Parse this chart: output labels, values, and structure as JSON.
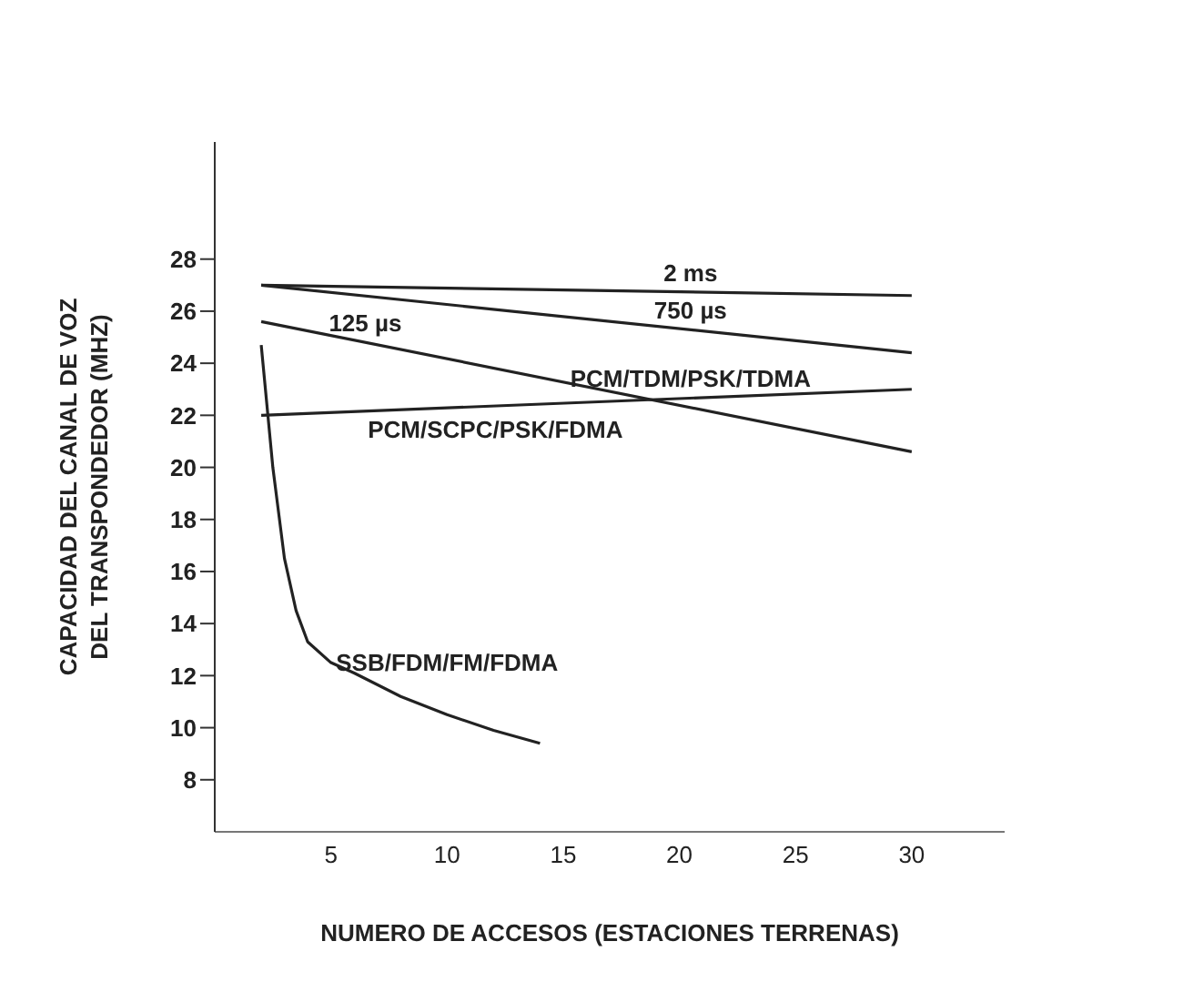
{
  "chart_data": {
    "type": "line",
    "xlabel": "NUMERO DE ACCESOS  (ESTACIONES TERRENAS)",
    "ylabel": "CAPACIDAD DEL CANAL DE VOZ\nDEL TRANSPONDEDOR (MHZ)",
    "series": [
      {
        "name": "2 ms",
        "color": "#222222",
        "x": [
          2,
          30
        ],
        "values": [
          27.0,
          26.6
        ]
      },
      {
        "name": "750 µs",
        "color": "#222222",
        "x": [
          2,
          30
        ],
        "values": [
          27.0,
          24.4
        ]
      },
      {
        "name": "125 µs",
        "color": "#222222",
        "x": [
          2,
          30
        ],
        "values": [
          25.6,
          20.6
        ]
      },
      {
        "name": "PCM/SCPC/PSK/FDMA",
        "color": "#222222",
        "x": [
          2,
          30
        ],
        "values": [
          22.0,
          23.0
        ]
      },
      {
        "name": "SSB/FDM/FM/FDMA",
        "color": "#222222",
        "x": [
          2,
          2.5,
          3,
          3.5,
          4,
          5,
          6,
          8,
          10,
          12,
          14
        ],
        "values": [
          24.7,
          20,
          16.5,
          14.5,
          13.3,
          12.5,
          12.1,
          11.2,
          10.5,
          9.9,
          9.4
        ]
      }
    ],
    "annotations": [
      "PCM/TDM/PSK/TDMA"
    ],
    "xlim": [
      0,
      34
    ],
    "xticks": [
      5,
      10,
      15,
      20,
      25,
      30
    ],
    "ylim": [
      6,
      32.5
    ],
    "yticks": [
      8,
      10,
      12,
      14,
      16,
      18,
      20,
      22,
      24,
      26,
      28
    ],
    "grid": false,
    "legend": false,
    "marker": "none",
    "line_style": "solid"
  }
}
